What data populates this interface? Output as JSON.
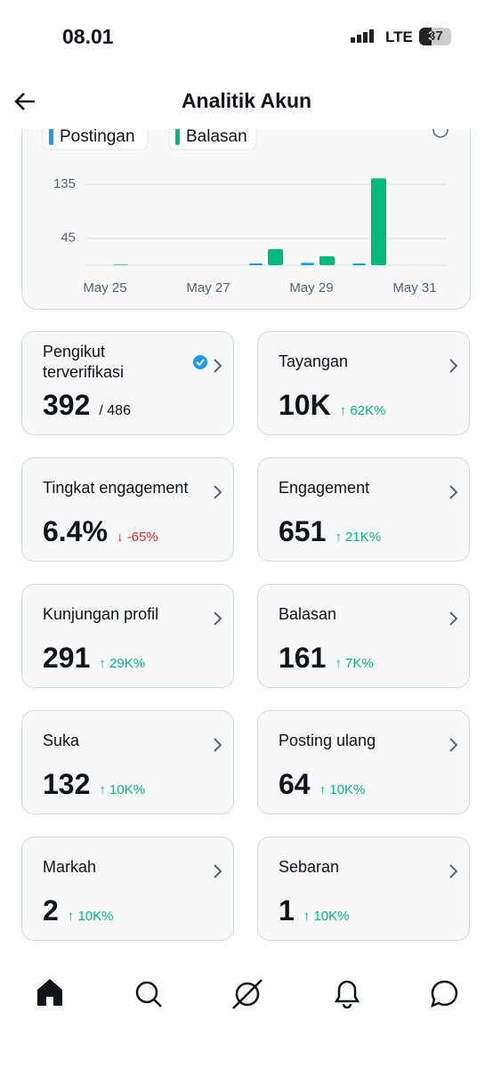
{
  "status_bar": {
    "time": "08.01",
    "network": "LTE",
    "battery": "37"
  },
  "header": {
    "title": "Analitik Akun"
  },
  "chart_data": {
    "type": "bar",
    "categories": [
      "May 25",
      null,
      "May 27",
      null,
      "May 29",
      null,
      "May 31"
    ],
    "series": [
      {
        "name": "Postingan",
        "color": "#1d9bf0",
        "values": [
          0,
          0,
          0,
          3,
          4,
          3,
          0
        ]
      },
      {
        "name": "Balasan",
        "color": "#00ba7c",
        "values": [
          1,
          0,
          0,
          27,
          15,
          145,
          0
        ]
      }
    ],
    "ylim": [
      0,
      150
    ],
    "yticks": [
      45,
      135
    ],
    "grid": true
  },
  "metrics": [
    {
      "label": "Pengikut terverifikasi",
      "value": "392",
      "total": "/ 486"
    },
    {
      "label": "Tayangan",
      "value": "10K",
      "change": "↑ 62K%",
      "color": "#00ba7c"
    },
    {
      "label": "Tingkat engagement",
      "value": "6.4%",
      "change": "↓ -65%",
      "color": "#f4212e"
    },
    {
      "label": "Engagement",
      "value": "651",
      "change": "↑ 21K%",
      "color": "#00ba7c"
    },
    {
      "label": "Kunjungan profil",
      "value": "291",
      "change": "↑ 29K%",
      "color": "#00ba7c"
    },
    {
      "label": "Balasan",
      "value": "161",
      "change": "↑ 7K%",
      "color": "#00ba7c"
    },
    {
      "label": "Suka",
      "value": "132",
      "change": "↑ 10K%",
      "color": "#00ba7c"
    },
    {
      "label": "Posting ulang",
      "value": "64",
      "change": "↑ 10K%",
      "color": "#00ba7c"
    },
    {
      "label": "Markah",
      "value": "2",
      "change": "↑ 10K%",
      "color": "#00ba7c"
    },
    {
      "label": "Sebaran",
      "value": "1",
      "change": "↑ 10K%",
      "color": "#00ba7c"
    }
  ]
}
